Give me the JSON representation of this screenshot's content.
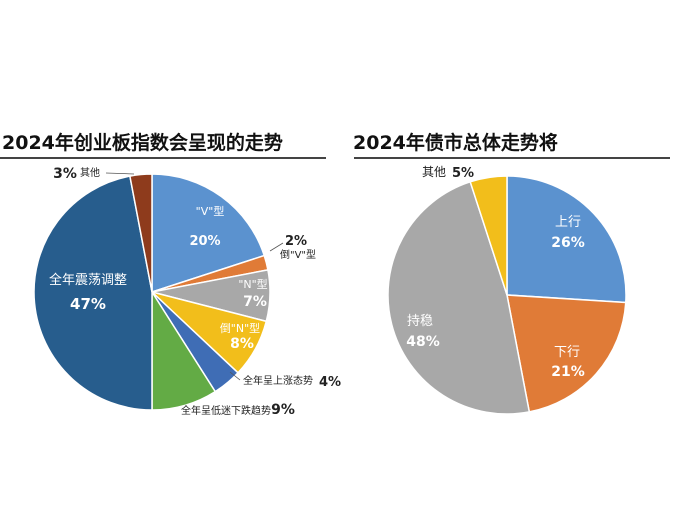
{
  "chart_data": [
    {
      "type": "pie",
      "title": "2024年创业板指数会呈现的走势",
      "slices": [
        {
          "label": "\"V\"型",
          "value": 20,
          "pct": "20%",
          "color": "#5b92cf"
        },
        {
          "label": "倒\"V\"型",
          "value": 2,
          "pct": "2%",
          "color": "#e07b37"
        },
        {
          "label": "\"N\"型",
          "value": 7,
          "pct": "7%",
          "color": "#a8a8a8"
        },
        {
          "label": "倒\"N\"型",
          "value": 8,
          "pct": "8%",
          "color": "#f2be1b"
        },
        {
          "label": "全年呈上涨态势",
          "value": 4,
          "pct": "4%",
          "color": "#3f6db5"
        },
        {
          "label": "全年呈低迷下跌趋势",
          "value": 9,
          "pct": "9%",
          "color": "#63ab45"
        },
        {
          "label": "全年震荡调整",
          "value": 47,
          "pct": "47%",
          "color": "#275d8d"
        },
        {
          "label": "其他",
          "value": 3,
          "pct": "3%",
          "color": "#8e3b1c"
        }
      ]
    },
    {
      "type": "pie",
      "title": "2024年债市总体走势将",
      "slices": [
        {
          "label": "上行",
          "value": 26,
          "pct": "26%",
          "color": "#5b92cf"
        },
        {
          "label": "下行",
          "value": 21,
          "pct": "21%",
          "color": "#e07b37"
        },
        {
          "label": "持稳",
          "value": 48,
          "pct": "48%",
          "color": "#a8a8a8"
        },
        {
          "label": "其他",
          "value": 5,
          "pct": "5%",
          "color": "#f2be1b"
        }
      ]
    }
  ]
}
